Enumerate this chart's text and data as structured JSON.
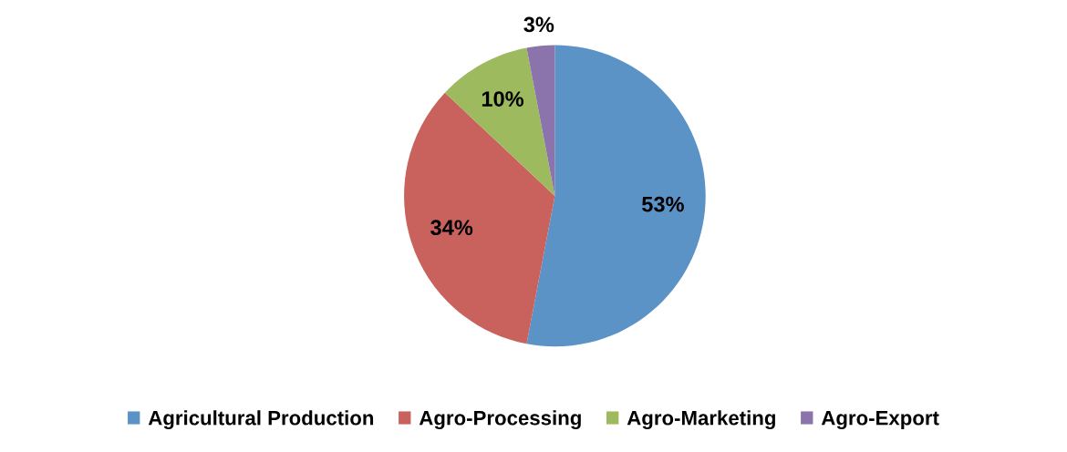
{
  "chart_data": {
    "type": "pie",
    "categories": [
      "Agricultural Production",
      "Agro-Processing",
      "Agro-Marketing",
      "Agro-Export"
    ],
    "values": [
      53,
      34,
      10,
      3
    ],
    "value_labels": [
      "53%",
      "34%",
      "10%",
      "3%"
    ],
    "colors": [
      "#5b93c7",
      "#c9615c",
      "#9dbb5e",
      "#8b73ab"
    ],
    "legend": "bottom"
  }
}
